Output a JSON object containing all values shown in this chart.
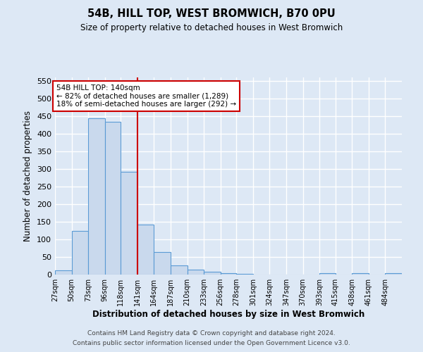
{
  "title1": "54B, HILL TOP, WEST BROMWICH, B70 0PU",
  "title2": "Size of property relative to detached houses in West Bromwich",
  "xlabel": "Distribution of detached houses by size in West Bromwich",
  "ylabel": "Number of detached properties",
  "bin_edges": [
    27,
    50,
    73,
    96,
    118,
    141,
    164,
    187,
    210,
    233,
    256,
    278,
    301,
    324,
    347,
    370,
    393,
    415,
    438,
    461,
    484,
    507
  ],
  "bin_labels": [
    "27sqm",
    "50sqm",
    "73sqm",
    "96sqm",
    "118sqm",
    "141sqm",
    "164sqm",
    "187sqm",
    "210sqm",
    "233sqm",
    "256sqm",
    "278sqm",
    "301sqm",
    "324sqm",
    "347sqm",
    "370sqm",
    "393sqm",
    "415sqm",
    "438sqm",
    "461sqm",
    "484sqm"
  ],
  "counts": [
    13,
    125,
    445,
    435,
    293,
    143,
    65,
    27,
    14,
    8,
    5,
    3,
    1,
    1,
    1,
    1,
    4,
    1,
    5,
    0,
    5
  ],
  "bar_color": "#c9d9ed",
  "bar_edge_color": "#5b9bd5",
  "vline_x": 141,
  "vline_color": "#cc0000",
  "ylim": [
    0,
    560
  ],
  "yticks": [
    0,
    50,
    100,
    150,
    200,
    250,
    300,
    350,
    400,
    450,
    500,
    550
  ],
  "annotation_text": "54B HILL TOP: 140sqm\n← 82% of detached houses are smaller (1,289)\n18% of semi-detached houses are larger (292) →",
  "annotation_box_color": "#ffffff",
  "annotation_box_edge": "#cc0000",
  "footer1": "Contains HM Land Registry data © Crown copyright and database right 2024.",
  "footer2": "Contains public sector information licensed under the Open Government Licence v3.0.",
  "background_color": "#dde8f5",
  "plot_bg_color": "#dde8f5",
  "grid_color": "#ffffff"
}
